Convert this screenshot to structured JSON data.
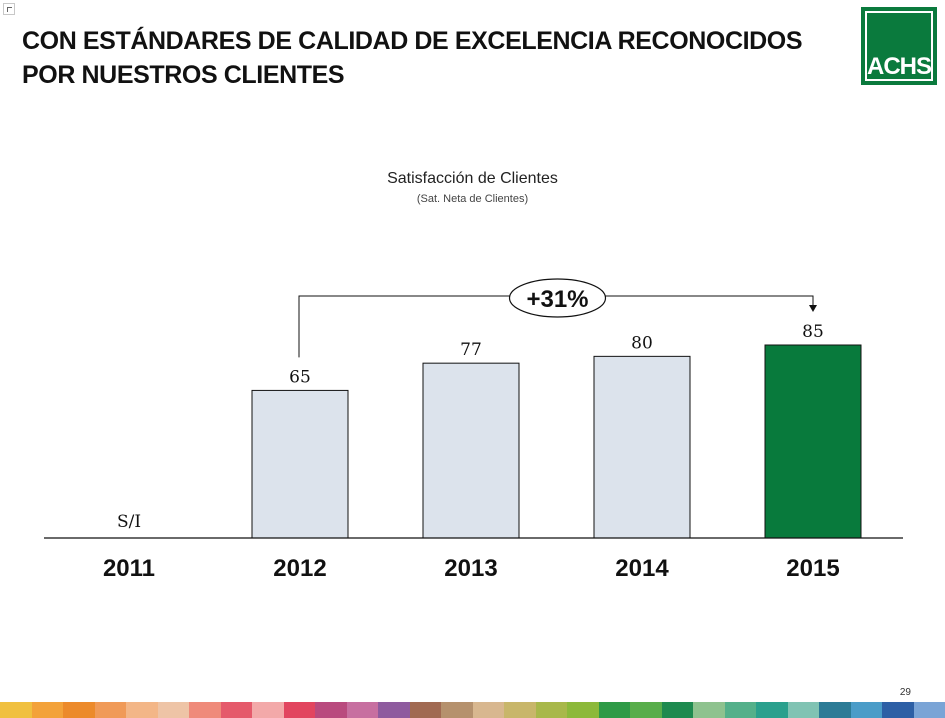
{
  "page": {
    "title": "CON ESTÁNDARES DE CALIDAD DE EXCELENCIA RECONOCIDOS POR NUESTROS CLIENTES",
    "logo_text": "ACHS",
    "page_number": "29"
  },
  "chart_data": {
    "type": "bar",
    "title": "Satisfacción de Clientes",
    "subtitle": "(Sat. Neta de Clientes)",
    "categories": [
      "2011",
      "2012",
      "2013",
      "2014",
      "2015"
    ],
    "values": [
      null,
      65,
      77,
      80,
      85
    ],
    "data_labels": [
      "S/I",
      "65",
      "77",
      "80",
      "85"
    ],
    "bar_colors": [
      "#dce3ec",
      "#dce3ec",
      "#dce3ec",
      "#dce3ec",
      "#087a3c"
    ],
    "annotation": {
      "label": "+31%",
      "from_category": "2012",
      "to_category": "2015"
    },
    "xlabel": "",
    "ylabel": "",
    "grid": false,
    "legend": "none"
  },
  "colors": {
    "brand_green": "#0a7a3d",
    "bar_default": "#dce3ec",
    "bar_highlight": "#087a3c"
  },
  "footer_strip_colors": [
    "#f0c040",
    "#f3a23a",
    "#ec8a2b",
    "#f09a58",
    "#f3b687",
    "#eec4a6",
    "#ef8a7a",
    "#e55a6b",
    "#f3a9a9",
    "#e2455f",
    "#b94a7e",
    "#c76fa0",
    "#8e5b9e",
    "#a16a52",
    "#b5916d",
    "#d8b78f",
    "#c8b66a",
    "#a8b84a",
    "#8cb93a",
    "#2e9a46",
    "#58ad4a",
    "#1e8a4f",
    "#8ec28e",
    "#54b08a",
    "#2aa08d",
    "#80c3b3",
    "#2c7b96",
    "#4a9cc8",
    "#2d5fa5",
    "#7aa4d6"
  ]
}
